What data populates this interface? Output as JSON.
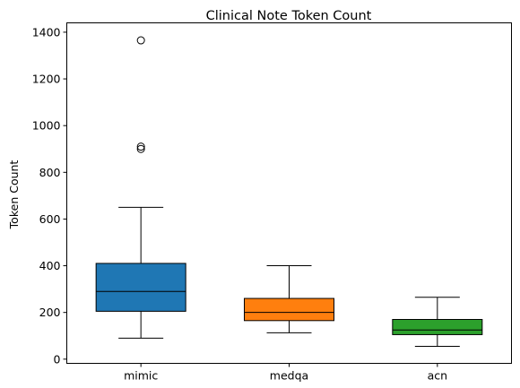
{
  "chart_data": {
    "type": "box",
    "title": "Clinical Note Token Count",
    "xlabel": "",
    "ylabel": "Token Count",
    "ylim": [
      -18,
      1440
    ],
    "yticks": [
      0,
      200,
      400,
      600,
      800,
      1000,
      1200,
      1400
    ],
    "grid": false,
    "categories": [
      "mimic",
      "medqa",
      "acn"
    ],
    "boxes": [
      {
        "category": "mimic",
        "whisker_low": 90,
        "q1": 205,
        "median": 290,
        "q3": 410,
        "whisker_high": 650,
        "outliers": [
          900,
          910,
          1365
        ],
        "color": "#1f77b4"
      },
      {
        "category": "medqa",
        "whisker_low": 113,
        "q1": 165,
        "median": 200,
        "q3": 260,
        "whisker_high": 400,
        "outliers": [],
        "color": "#ff7f0e"
      },
      {
        "category": "acn",
        "whisker_low": 55,
        "q1": 105,
        "median": 125,
        "q3": 170,
        "whisker_high": 265,
        "outliers": [],
        "color": "#2ca02c"
      }
    ]
  }
}
